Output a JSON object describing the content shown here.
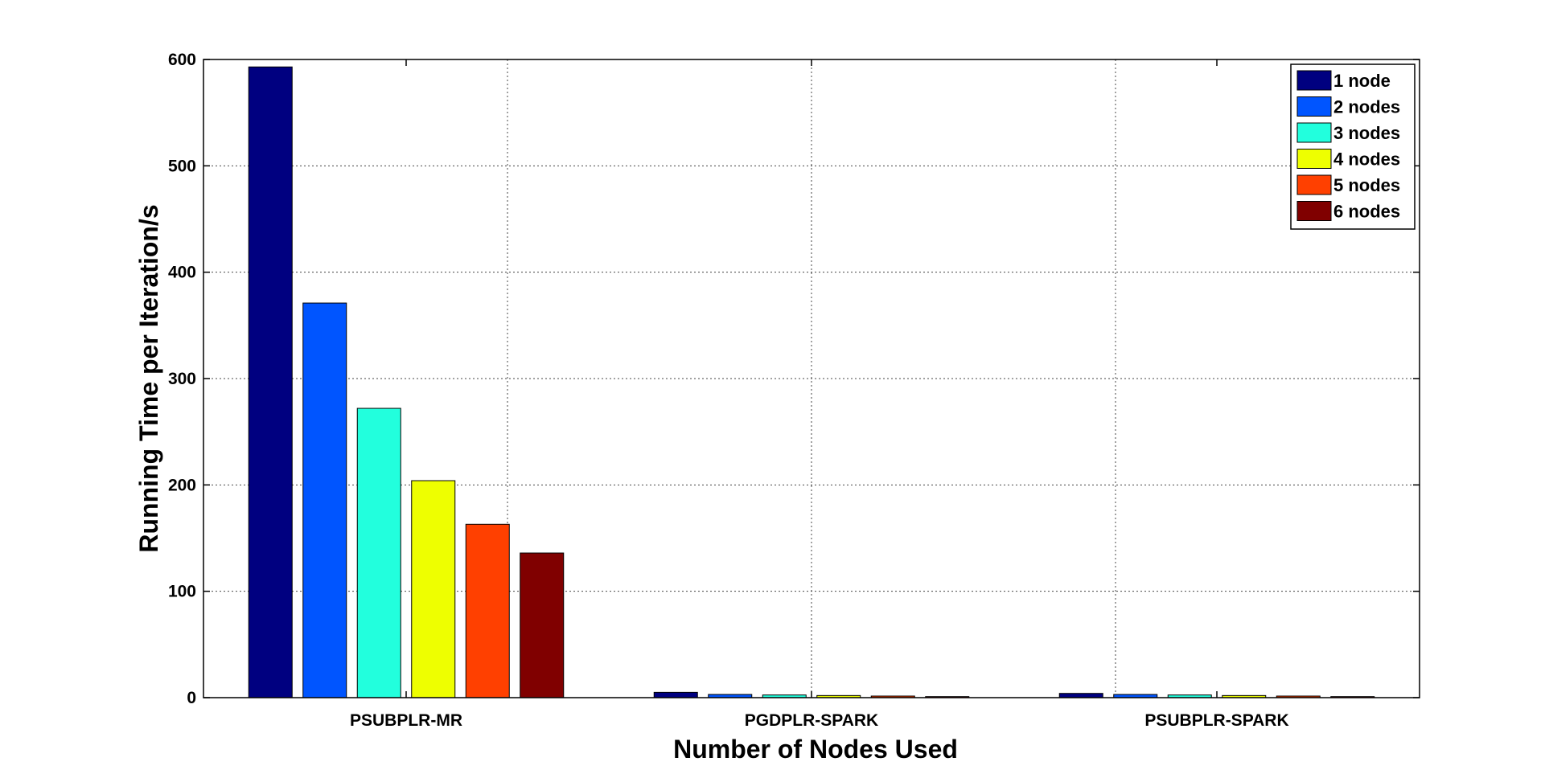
{
  "chart_data": {
    "type": "bar",
    "categories": [
      "PSUBPLR-MR",
      "PGDPLR-SPARK",
      "PSUBPLR-SPARK"
    ],
    "series": [
      {
        "name": "1 node",
        "color": "#000080",
        "values": [
          593,
          5,
          4
        ]
      },
      {
        "name": "2 nodes",
        "color": "#0055ff",
        "values": [
          371,
          3,
          3
        ]
      },
      {
        "name": "3 nodes",
        "color": "#22ffdd",
        "values": [
          272,
          2.5,
          2.5
        ]
      },
      {
        "name": "4 nodes",
        "color": "#eeff00",
        "values": [
          204,
          2,
          2
        ]
      },
      {
        "name": "5 nodes",
        "color": "#ff4000",
        "values": [
          163,
          1.5,
          1.5
        ]
      },
      {
        "name": "6 nodes",
        "color": "#800000",
        "values": [
          136,
          1,
          1
        ]
      }
    ],
    "title": "",
    "xlabel": "Number of Nodes Used",
    "ylabel": "Running Time per Iteration/s",
    "ylim": [
      0,
      600
    ],
    "yticks": [
      0,
      100,
      200,
      300,
      400,
      500,
      600
    ],
    "grid": true,
    "legend_position": "top-right"
  }
}
